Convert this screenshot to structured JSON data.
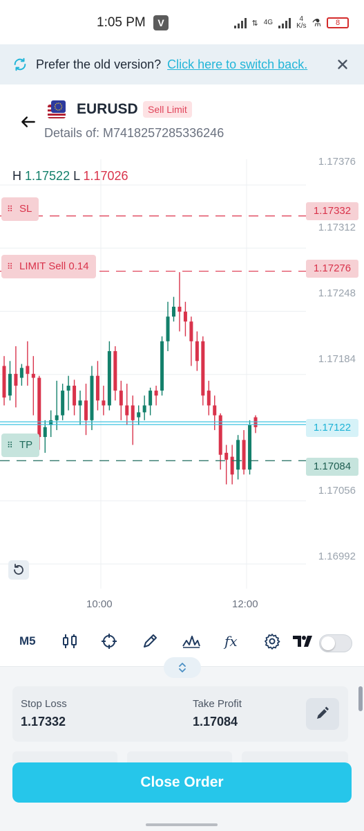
{
  "status_bar": {
    "time": "1:05 PM",
    "app_badge": "V",
    "network": "4G",
    "speed_value": "4",
    "speed_unit": "K/s",
    "battery": "8"
  },
  "banner": {
    "text": "Prefer the old version?",
    "link": "Click here to switch back.",
    "icon": "sync-icon",
    "close_icon": "close-icon"
  },
  "header": {
    "symbol": "EURUSD",
    "order_type": "Sell Limit",
    "details": "Details of: M7418257285336246"
  },
  "chart": {
    "high_label": "H",
    "high_value": "1.17522",
    "low_label": "L",
    "low_value": "1.17026",
    "sl_label": "SL",
    "sl_price": "1.17332",
    "limit_label": "LIMIT Sell 0.14",
    "limit_price": "1.17276",
    "current_price": "1.17122",
    "tp_label": "TP",
    "tp_price": "1.17084",
    "axis_prices": [
      "1.17376",
      "1.17312",
      "1.17248",
      "1.17184",
      "1.17056",
      "1.16992"
    ],
    "time_labels": [
      "10:00",
      "12:00"
    ]
  },
  "chart_data": {
    "type": "candlestick",
    "timeframe": "M5",
    "ylim": [
      1.1696,
      1.17395
    ],
    "candles": [
      {
        "o": 1.1718,
        "h": 1.1719,
        "c": 1.17148,
        "l": 1.1714
      },
      {
        "o": 1.1715,
        "h": 1.17185,
        "c": 1.17172,
        "l": 1.17145
      },
      {
        "o": 1.17172,
        "h": 1.172,
        "c": 1.1716,
        "l": 1.17138
      },
      {
        "o": 1.17168,
        "h": 1.17182,
        "c": 1.17178,
        "l": 1.1716
      },
      {
        "o": 1.1718,
        "h": 1.17205,
        "c": 1.17172,
        "l": 1.1716
      },
      {
        "o": 1.17172,
        "h": 1.1719,
        "c": 1.17168,
        "l": 1.1713
      },
      {
        "o": 1.17168,
        "h": 1.1717,
        "c": 1.17108,
        "l": 1.17095
      },
      {
        "o": 1.17108,
        "h": 1.17125,
        "c": 1.17118,
        "l": 1.17092
      },
      {
        "o": 1.1712,
        "h": 1.17135,
        "c": 1.17125,
        "l": 1.17108
      },
      {
        "o": 1.17125,
        "h": 1.17165,
        "c": 1.1713,
        "l": 1.17115
      },
      {
        "o": 1.1713,
        "h": 1.17162,
        "c": 1.17155,
        "l": 1.17125
      },
      {
        "o": 1.17155,
        "h": 1.1717,
        "c": 1.1716,
        "l": 1.17135
      },
      {
        "o": 1.1716,
        "h": 1.17166,
        "c": 1.1714,
        "l": 1.1713
      },
      {
        "o": 1.1714,
        "h": 1.17155,
        "c": 1.17145,
        "l": 1.1712
      },
      {
        "o": 1.17145,
        "h": 1.17162,
        "c": 1.17125,
        "l": 1.1711
      },
      {
        "o": 1.17125,
        "h": 1.1718,
        "c": 1.1717,
        "l": 1.17115
      },
      {
        "o": 1.1717,
        "h": 1.17185,
        "c": 1.17145,
        "l": 1.17135
      },
      {
        "o": 1.17145,
        "h": 1.1716,
        "c": 1.1714,
        "l": 1.1713
      },
      {
        "o": 1.1714,
        "h": 1.17205,
        "c": 1.17195,
        "l": 1.17135
      },
      {
        "o": 1.17195,
        "h": 1.172,
        "c": 1.17155,
        "l": 1.17145
      },
      {
        "o": 1.17155,
        "h": 1.17165,
        "c": 1.1714,
        "l": 1.17125
      },
      {
        "o": 1.1714,
        "h": 1.17162,
        "c": 1.1713,
        "l": 1.1712
      },
      {
        "o": 1.1714,
        "h": 1.1715,
        "c": 1.17125,
        "l": 1.171
      },
      {
        "o": 1.17128,
        "h": 1.1714,
        "c": 1.17133,
        "l": 1.1712
      },
      {
        "o": 1.17133,
        "h": 1.1715,
        "c": 1.1714,
        "l": 1.17125
      },
      {
        "o": 1.1714,
        "h": 1.17158,
        "c": 1.17155,
        "l": 1.1713
      },
      {
        "o": 1.17155,
        "h": 1.1716,
        "c": 1.1715,
        "l": 1.1714
      },
      {
        "o": 1.17155,
        "h": 1.1721,
        "c": 1.17205,
        "l": 1.1715
      },
      {
        "o": 1.17205,
        "h": 1.17245,
        "c": 1.1723,
        "l": 1.17195
      },
      {
        "o": 1.1723,
        "h": 1.1725,
        "c": 1.1724,
        "l": 1.17225
      },
      {
        "o": 1.1724,
        "h": 1.17275,
        "c": 1.17235,
        "l": 1.17215
      },
      {
        "o": 1.17235,
        "h": 1.17245,
        "c": 1.17225,
        "l": 1.1721
      },
      {
        "o": 1.17225,
        "h": 1.1723,
        "c": 1.17205,
        "l": 1.1718
      },
      {
        "o": 1.17205,
        "h": 1.17215,
        "c": 1.17185,
        "l": 1.17175
      },
      {
        "o": 1.17205,
        "h": 1.1721,
        "c": 1.1715,
        "l": 1.1714
      },
      {
        "o": 1.17155,
        "h": 1.17165,
        "c": 1.1714,
        "l": 1.1713
      },
      {
        "o": 1.1714,
        "h": 1.1715,
        "c": 1.1713,
        "l": 1.17115
      },
      {
        "o": 1.1713,
        "h": 1.17132,
        "c": 1.1709,
        "l": 1.17075
      },
      {
        "o": 1.17092,
        "h": 1.171,
        "c": 1.17085,
        "l": 1.1706
      },
      {
        "o": 1.17088,
        "h": 1.171,
        "c": 1.1707,
        "l": 1.1706
      },
      {
        "o": 1.17075,
        "h": 1.1711,
        "c": 1.17105,
        "l": 1.17065
      },
      {
        "o": 1.17105,
        "h": 1.17115,
        "c": 1.17075,
        "l": 1.1707
      },
      {
        "o": 1.17075,
        "h": 1.17125,
        "c": 1.1712,
        "l": 1.1707
      },
      {
        "o": 1.17128,
        "h": 1.1713,
        "c": 1.17118,
        "l": 1.17112
      }
    ],
    "sl": 1.17332,
    "limit": 1.17276,
    "current": 1.17122,
    "tp": 1.17084,
    "colors": {
      "up": "#13806b",
      "down": "#d9334b",
      "sl": "#e0445a",
      "tp": "#1f6b5c",
      "current": "#3cc3e0",
      "grid": "#eceff2"
    }
  },
  "toolbar": {
    "timeframe": "M5",
    "icons": [
      "candles-icon",
      "crosshair-icon",
      "pencil-icon",
      "indicators-icon",
      "fx-icon",
      "settings-icon",
      "tradingview-logo-icon",
      "toggle-switch"
    ]
  },
  "panel": {
    "stop_loss_label": "Stop Loss",
    "stop_loss_value": "1.17332",
    "take_profit_label": "Take Profit",
    "take_profit_value": "1.17084",
    "close_button": "Close Order"
  }
}
